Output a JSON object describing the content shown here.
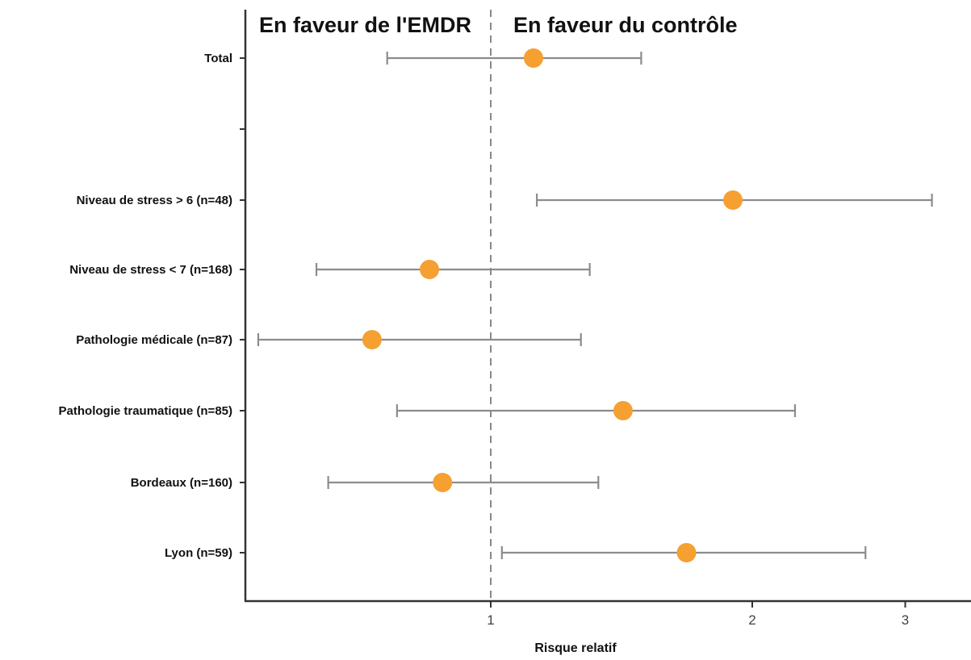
{
  "chart_data": {
    "type": "scatter",
    "subtype": "forest-plot",
    "xlabel": "Risque relatif",
    "ylabel": "",
    "x_scale": "log",
    "xlim": [
      0.55,
      3.3
    ],
    "x_ticks": [
      1,
      2,
      3
    ],
    "x_tick_labels": [
      "1",
      "2",
      "3"
    ],
    "reference_line": 1,
    "grid": false,
    "annotations": {
      "left": "En faveur de l'EMDR",
      "right": "En faveur du contrôle"
    },
    "colors": {
      "point": "#F5A030",
      "interval": "#8C8C8C",
      "axis": "#333333",
      "reference_line": "#888888"
    },
    "rows": [
      {
        "label": "Total",
        "estimate": 1.12,
        "lower": 0.76,
        "upper": 1.49
      },
      {
        "label": "",
        "estimate": null,
        "lower": null,
        "upper": null
      },
      {
        "label": "Niveau de stress > 6 (n=48)",
        "estimate": 1.9,
        "lower": 1.13,
        "upper": 3.22
      },
      {
        "label": "Niveau de stress < 7 (n=168)",
        "estimate": 0.85,
        "lower": 0.63,
        "upper": 1.3
      },
      {
        "label": "Pathologie médicale (n=87)",
        "estimate": 0.73,
        "lower": 0.54,
        "upper": 1.27
      },
      {
        "label": "Pathologie traumatique (n=85)",
        "estimate": 1.42,
        "lower": 0.78,
        "upper": 2.24
      },
      {
        "label": "Bordeaux (n=160)",
        "estimate": 0.88,
        "lower": 0.65,
        "upper": 1.33
      },
      {
        "label": "Lyon (n=59)",
        "estimate": 1.68,
        "lower": 1.03,
        "upper": 2.7
      }
    ]
  }
}
